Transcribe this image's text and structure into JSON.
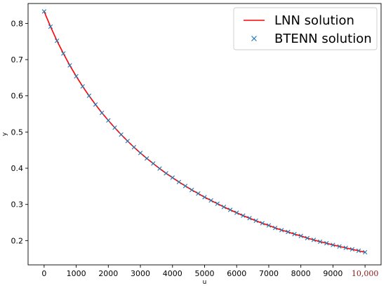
{
  "chart_data": {
    "type": "line",
    "title": "",
    "xlabel": "u",
    "ylabel": "y",
    "xlim": [
      -500,
      10500
    ],
    "ylim": [
      0.133,
      0.855
    ],
    "grid": false,
    "legend_position": "top-right",
    "x_ticks": [
      0,
      1000,
      2000,
      3000,
      4000,
      5000,
      6000,
      7000,
      8000,
      9000,
      10000
    ],
    "x_tick_labels": [
      "0",
      "1000",
      "2000",
      "3000",
      "4000",
      "5000",
      "6000",
      "7000",
      "8000",
      "9000",
      "10,000"
    ],
    "y_ticks": [
      0.2,
      0.3,
      0.4,
      0.5,
      0.6,
      0.7,
      0.8
    ],
    "y_tick_labels": [
      "0.2",
      "0.3",
      "0.4",
      "0.5",
      "0.6",
      "0.7",
      "0.8"
    ],
    "x": [
      0,
      200,
      400,
      600,
      800,
      1000,
      1200,
      1400,
      1600,
      1800,
      2000,
      2200,
      2400,
      2600,
      2800,
      3000,
      3200,
      3400,
      3600,
      3800,
      4000,
      4200,
      4400,
      4600,
      4800,
      5000,
      5200,
      5400,
      5600,
      5800,
      6000,
      6200,
      6400,
      6600,
      6800,
      7000,
      7200,
      7400,
      7600,
      7800,
      8000,
      8200,
      8400,
      8600,
      8800,
      9000,
      9200,
      9400,
      9600,
      9800,
      10000
    ],
    "series": [
      {
        "name": "LNN solution",
        "style": "line",
        "color": "#ff0000",
        "values": [
          0.833,
          0.791,
          0.752,
          0.717,
          0.684,
          0.654,
          0.626,
          0.6,
          0.576,
          0.553,
          0.532,
          0.512,
          0.493,
          0.475,
          0.458,
          0.442,
          0.427,
          0.413,
          0.399,
          0.386,
          0.374,
          0.362,
          0.351,
          0.34,
          0.33,
          0.32,
          0.311,
          0.302,
          0.293,
          0.285,
          0.277,
          0.269,
          0.262,
          0.255,
          0.248,
          0.242,
          0.235,
          0.229,
          0.224,
          0.218,
          0.213,
          0.207,
          0.202,
          0.197,
          0.193,
          0.188,
          0.184,
          0.18,
          0.176,
          0.172,
          0.168
        ]
      },
      {
        "name": "BTENN solution",
        "style": "marker-x",
        "color": "#1f77b4",
        "values": [
          0.833,
          0.791,
          0.752,
          0.717,
          0.684,
          0.654,
          0.626,
          0.6,
          0.576,
          0.553,
          0.532,
          0.512,
          0.493,
          0.475,
          0.458,
          0.442,
          0.427,
          0.413,
          0.399,
          0.386,
          0.374,
          0.362,
          0.351,
          0.34,
          0.33,
          0.32,
          0.311,
          0.302,
          0.293,
          0.285,
          0.277,
          0.269,
          0.262,
          0.255,
          0.248,
          0.242,
          0.235,
          0.229,
          0.224,
          0.218,
          0.213,
          0.207,
          0.202,
          0.197,
          0.193,
          0.188,
          0.184,
          0.18,
          0.176,
          0.172,
          0.168
        ]
      }
    ]
  }
}
